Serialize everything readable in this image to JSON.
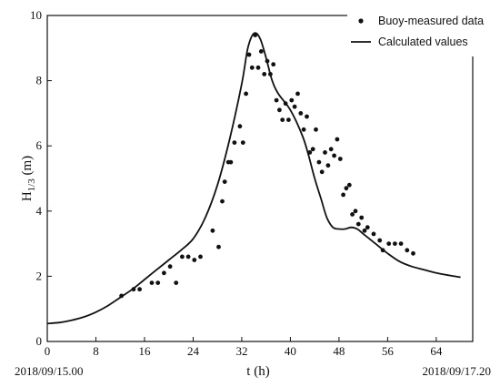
{
  "chart_data": {
    "type": "scatter",
    "title": "",
    "xlabel": "t (h)",
    "ylabel": {
      "base": "H",
      "sub": "1/3",
      "unit": " (m)"
    },
    "xlim": [
      0,
      70
    ],
    "ylim": [
      0,
      10
    ],
    "x_ticks": [
      0,
      8,
      16,
      24,
      32,
      40,
      48,
      56,
      64
    ],
    "y_ticks": [
      0,
      2,
      4,
      6,
      8,
      10
    ],
    "grid": false,
    "legend_position": "top-right",
    "start_date": "2018/09/15.00",
    "end_date": "2018/09/17.20",
    "series": [
      {
        "name": "Buoy-measured data",
        "kind": "points",
        "color": "#111111",
        "points": [
          [
            12.2,
            1.4
          ],
          [
            14.2,
            1.6
          ],
          [
            15.2,
            1.6
          ],
          [
            17.2,
            1.8
          ],
          [
            18.2,
            1.8
          ],
          [
            19.2,
            2.1
          ],
          [
            20.2,
            2.3
          ],
          [
            21.2,
            1.8
          ],
          [
            22.2,
            2.6
          ],
          [
            23.2,
            2.6
          ],
          [
            24.2,
            2.5
          ],
          [
            25.2,
            2.6
          ],
          [
            27.2,
            3.4
          ],
          [
            28.2,
            2.9
          ],
          [
            28.8,
            4.3
          ],
          [
            29.2,
            4.9
          ],
          [
            29.8,
            5.5
          ],
          [
            30.2,
            5.5
          ],
          [
            30.8,
            6.1
          ],
          [
            31.7,
            6.6
          ],
          [
            32.2,
            6.1
          ],
          [
            32.7,
            7.6
          ],
          [
            33.2,
            8.8
          ],
          [
            33.7,
            8.4
          ],
          [
            34.2,
            9.4
          ],
          [
            34.7,
            8.4
          ],
          [
            35.2,
            8.9
          ],
          [
            35.7,
            8.2
          ],
          [
            36.2,
            8.6
          ],
          [
            36.7,
            8.2
          ],
          [
            37.2,
            8.5
          ],
          [
            37.7,
            7.4
          ],
          [
            38.2,
            7.1
          ],
          [
            38.7,
            6.8
          ],
          [
            39.2,
            7.3
          ],
          [
            39.7,
            6.8
          ],
          [
            40.2,
            7.4
          ],
          [
            40.7,
            7.2
          ],
          [
            41.2,
            7.6
          ],
          [
            41.7,
            7.0
          ],
          [
            42.2,
            6.5
          ],
          [
            42.7,
            6.9
          ],
          [
            43.2,
            5.8
          ],
          [
            43.7,
            5.9
          ],
          [
            44.2,
            6.5
          ],
          [
            44.7,
            5.5
          ],
          [
            45.2,
            5.2
          ],
          [
            45.7,
            5.8
          ],
          [
            46.2,
            5.4
          ],
          [
            46.7,
            5.9
          ],
          [
            47.2,
            5.7
          ],
          [
            47.7,
            6.2
          ],
          [
            48.2,
            5.6
          ],
          [
            48.7,
            4.5
          ],
          [
            49.2,
            4.7
          ],
          [
            49.7,
            4.8
          ],
          [
            50.2,
            3.9
          ],
          [
            50.7,
            4.0
          ],
          [
            51.2,
            3.6
          ],
          [
            51.7,
            3.8
          ],
          [
            52.2,
            3.4
          ],
          [
            52.7,
            3.5
          ],
          [
            53.7,
            3.3
          ],
          [
            54.7,
            3.1
          ],
          [
            55.2,
            2.8
          ],
          [
            56.2,
            3.0
          ],
          [
            57.2,
            3.0
          ],
          [
            58.2,
            3.0
          ],
          [
            59.2,
            2.8
          ],
          [
            60.2,
            2.7
          ]
        ]
      },
      {
        "name": "Calculated values",
        "kind": "line",
        "color": "#111111",
        "points": [
          [
            0,
            0.55
          ],
          [
            2,
            0.58
          ],
          [
            4,
            0.65
          ],
          [
            6,
            0.75
          ],
          [
            8,
            0.9
          ],
          [
            10,
            1.1
          ],
          [
            12,
            1.35
          ],
          [
            14,
            1.6
          ],
          [
            16,
            1.9
          ],
          [
            18,
            2.2
          ],
          [
            20,
            2.5
          ],
          [
            22,
            2.8
          ],
          [
            24,
            3.15
          ],
          [
            26,
            3.8
          ],
          [
            28,
            4.8
          ],
          [
            30,
            6.2
          ],
          [
            32,
            7.9
          ],
          [
            33,
            9.0
          ],
          [
            34,
            9.45
          ],
          [
            35,
            9.3
          ],
          [
            36,
            8.7
          ],
          [
            37,
            8.0
          ],
          [
            38,
            7.6
          ],
          [
            40,
            7.1
          ],
          [
            42,
            6.3
          ],
          [
            43,
            5.7
          ],
          [
            44,
            5.0
          ],
          [
            45,
            4.4
          ],
          [
            46,
            3.8
          ],
          [
            47,
            3.5
          ],
          [
            48,
            3.45
          ],
          [
            49,
            3.45
          ],
          [
            50,
            3.5
          ],
          [
            51,
            3.45
          ],
          [
            52,
            3.3
          ],
          [
            54,
            3.0
          ],
          [
            56,
            2.7
          ],
          [
            58,
            2.45
          ],
          [
            60,
            2.3
          ],
          [
            62,
            2.2
          ],
          [
            64,
            2.1
          ],
          [
            66,
            2.03
          ],
          [
            68,
            1.97
          ]
        ]
      }
    ]
  }
}
